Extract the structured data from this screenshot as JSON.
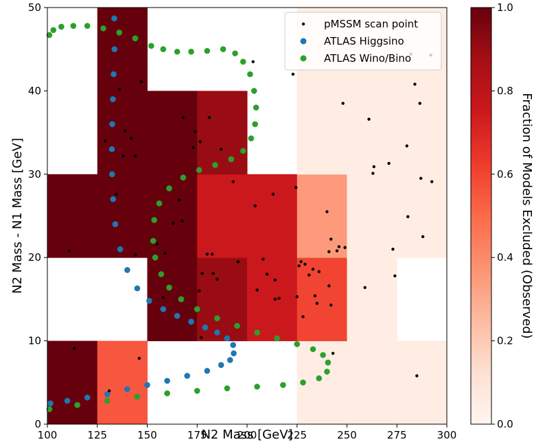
{
  "chart_data": {
    "type": "heatmap",
    "xlabel": "N2 Mass [GeV]",
    "ylabel": "N2 Mass - N1 Mass [GeV]",
    "colorbar_label": "Fraction of Models Excluded (Observed)",
    "xlim": [
      100,
      300
    ],
    "ylim": [
      0,
      50
    ],
    "xticks": [
      "100",
      "125",
      "150",
      "175",
      "200",
      "225",
      "250",
      "275",
      "300"
    ],
    "yticks": [
      "0",
      "10",
      "20",
      "30",
      "40",
      "50"
    ],
    "colorbar_ticks": [
      "0.0",
      "0.2",
      "0.4",
      "0.6",
      "0.8",
      "1.0"
    ],
    "colormap": "Reds",
    "legend_position": "top-right",
    "heatmap_cells": [
      {
        "x0": 100,
        "x1": 125,
        "y0": 0,
        "y1": 10,
        "value": 1.0
      },
      {
        "x0": 125,
        "x1": 150,
        "y0": 0,
        "y1": 10,
        "value": 0.55
      },
      {
        "x0": 225,
        "x1": 250,
        "y0": 0,
        "y1": 10,
        "value": 0.05
      },
      {
        "x0": 250,
        "x1": 275,
        "y0": 0,
        "y1": 10,
        "value": 0.05
      },
      {
        "x0": 275,
        "x1": 300,
        "y0": 0,
        "y1": 10,
        "value": 0.05
      },
      {
        "x0": 150,
        "x1": 175,
        "y0": 10,
        "y1": 20,
        "value": 1.0
      },
      {
        "x0": 175,
        "x1": 200,
        "y0": 10,
        "y1": 20,
        "value": 0.9
      },
      {
        "x0": 200,
        "x1": 225,
        "y0": 10,
        "y1": 20,
        "value": 0.75
      },
      {
        "x0": 225,
        "x1": 250,
        "y0": 10,
        "y1": 20,
        "value": 0.6
      },
      {
        "x0": 250,
        "x1": 275,
        "y0": 10,
        "y1": 20,
        "value": 0.05
      },
      {
        "x0": 100,
        "x1": 125,
        "y0": 20,
        "y1": 30,
        "value": 1.0
      },
      {
        "x0": 125,
        "x1": 150,
        "y0": 20,
        "y1": 30,
        "value": 1.0
      },
      {
        "x0": 150,
        "x1": 175,
        "y0": 20,
        "y1": 30,
        "value": 1.0
      },
      {
        "x0": 175,
        "x1": 200,
        "y0": 20,
        "y1": 30,
        "value": 0.75
      },
      {
        "x0": 200,
        "x1": 225,
        "y0": 20,
        "y1": 30,
        "value": 0.75
      },
      {
        "x0": 225,
        "x1": 250,
        "y0": 20,
        "y1": 30,
        "value": 0.35
      },
      {
        "x0": 250,
        "x1": 275,
        "y0": 20,
        "y1": 30,
        "value": 0.05
      },
      {
        "x0": 275,
        "x1": 300,
        "y0": 20,
        "y1": 30,
        "value": 0.05
      },
      {
        "x0": 125,
        "x1": 150,
        "y0": 30,
        "y1": 40,
        "value": 1.0
      },
      {
        "x0": 150,
        "x1": 175,
        "y0": 30,
        "y1": 40,
        "value": 1.0
      },
      {
        "x0": 175,
        "x1": 200,
        "y0": 30,
        "y1": 40,
        "value": 0.9
      },
      {
        "x0": 225,
        "x1": 250,
        "y0": 30,
        "y1": 40,
        "value": 0.05
      },
      {
        "x0": 250,
        "x1": 275,
        "y0": 30,
        "y1": 40,
        "value": 0.05
      },
      {
        "x0": 275,
        "x1": 300,
        "y0": 30,
        "y1": 40,
        "value": 0.05
      },
      {
        "x0": 125,
        "x1": 150,
        "y0": 40,
        "y1": 50,
        "value": 1.0
      },
      {
        "x0": 225,
        "x1": 250,
        "y0": 40,
        "y1": 50,
        "value": 0.05
      },
      {
        "x0": 250,
        "x1": 275,
        "y0": 40,
        "y1": 50,
        "value": 0.05
      },
      {
        "x0": 275,
        "x1": 300,
        "y0": 40,
        "y1": 50,
        "value": 0.05
      }
    ],
    "series": [
      {
        "name": "pMSSM scan point",
        "type": "scatter",
        "color": "#000000",
        "points": [
          [
            113.5,
            9.1
          ],
          [
            131,
            4.0
          ],
          [
            146,
            7.9
          ],
          [
            111,
            20.8
          ],
          [
            134.5,
            27.6
          ],
          [
            144,
            20.3
          ],
          [
            155,
            21.6
          ],
          [
            158,
            15.2
          ],
          [
            159,
            20.5
          ],
          [
            163,
            24.1
          ],
          [
            166,
            26.9
          ],
          [
            167.5,
            24.4
          ],
          [
            174,
            35.1
          ],
          [
            176,
            16.0
          ],
          [
            177,
            10.4
          ],
          [
            177.5,
            18.1
          ],
          [
            176.5,
            33.9
          ],
          [
            181,
            36.8
          ],
          [
            180,
            20.4
          ],
          [
            182.5,
            20.4
          ],
          [
            183,
            18.1
          ],
          [
            185,
            17.4
          ],
          [
            187,
            33.0
          ],
          [
            195.5,
            19.5
          ],
          [
            193,
            29.1
          ],
          [
            203,
            43.5
          ],
          [
            204,
            26.2
          ],
          [
            205,
            16.1
          ],
          [
            208,
            19.8
          ],
          [
            210,
            18.0
          ],
          [
            213,
            27.6
          ],
          [
            214,
            17.3
          ],
          [
            214,
            15.0
          ],
          [
            216,
            15.1
          ],
          [
            223,
            42.0
          ],
          [
            224.5,
            28.4
          ],
          [
            225,
            15.3
          ],
          [
            226,
            19.0
          ],
          [
            227,
            19.5
          ],
          [
            228,
            12.9
          ],
          [
            229,
            19.2
          ],
          [
            231,
            17.9
          ],
          [
            233,
            18.6
          ],
          [
            234,
            15.4
          ],
          [
            235,
            14.5
          ],
          [
            236,
            18.3
          ],
          [
            240,
            25.5
          ],
          [
            241,
            20.7
          ],
          [
            241,
            16.6
          ],
          [
            242,
            14.3
          ],
          [
            242,
            22.2
          ],
          [
            243,
            8.5
          ],
          [
            245,
            20.8
          ],
          [
            246,
            21.3
          ],
          [
            248,
            38.5
          ],
          [
            249,
            21.2
          ],
          [
            259,
            16.4
          ],
          [
            261,
            36.6
          ],
          [
            263,
            30.1
          ],
          [
            263.5,
            30.9
          ],
          [
            271,
            31.3
          ],
          [
            273,
            21.0
          ],
          [
            274,
            17.8
          ],
          [
            280,
            33.4
          ],
          [
            280.5,
            24.9
          ],
          [
            282,
            44.4
          ],
          [
            284,
            40.8
          ],
          [
            285,
            5.8
          ],
          [
            286.5,
            38.5
          ],
          [
            287,
            29.5
          ],
          [
            288,
            22.5
          ],
          [
            292,
            44.3
          ],
          [
            292.5,
            29.1
          ],
          [
            129,
            34.0
          ],
          [
            136,
            40.2
          ],
          [
            138,
            32.2
          ],
          [
            139,
            35.2
          ],
          [
            142,
            34.3
          ],
          [
            144,
            32.2
          ],
          [
            147,
            41.1
          ],
          [
            168,
            36.8
          ],
          [
            173,
            33.2
          ]
        ]
      },
      {
        "name": "ATLAS Higgsino",
        "type": "scatter",
        "color": "#1f77b4",
        "points": [
          [
            133.5,
            48.7
          ],
          [
            133.6,
            45
          ],
          [
            133.2,
            42
          ],
          [
            132.8,
            39
          ],
          [
            132.5,
            36
          ],
          [
            132.3,
            33
          ],
          [
            132.4,
            30
          ],
          [
            132.9,
            27
          ],
          [
            134,
            24
          ],
          [
            136.5,
            21
          ],
          [
            140,
            18.5
          ],
          [
            145,
            16.3
          ],
          [
            151,
            14.8
          ],
          [
            158,
            13.8
          ],
          [
            165,
            13.0
          ],
          [
            172,
            12.3
          ],
          [
            179,
            11.6
          ],
          [
            185,
            11
          ],
          [
            190,
            10.3
          ],
          [
            193,
            9.5
          ],
          [
            193.3,
            8.5
          ],
          [
            191.5,
            7.7
          ],
          [
            187,
            7.1
          ],
          [
            180,
            6.4
          ],
          [
            170,
            5.8
          ],
          [
            160,
            5.2
          ],
          [
            150,
            4.7
          ],
          [
            140,
            4.2
          ],
          [
            130,
            3.6
          ],
          [
            120,
            3.2
          ],
          [
            110,
            2.8
          ],
          [
            101.5,
            2.5
          ]
        ]
      },
      {
        "name": "ATLAS Wino/Bino",
        "type": "scatter",
        "color": "#2ca02c",
        "points": [
          [
            101,
            46.7
          ],
          [
            103,
            47.3
          ],
          [
            107,
            47.7
          ],
          [
            113,
            47.8
          ],
          [
            120,
            47.8
          ],
          [
            128,
            47.5
          ],
          [
            136,
            47.0
          ],
          [
            144,
            46.3
          ],
          [
            152,
            45.4
          ],
          [
            158,
            45.0
          ],
          [
            165,
            44.7
          ],
          [
            172,
            44.7
          ],
          [
            180,
            44.8
          ],
          [
            188,
            45.0
          ],
          [
            194,
            44.5
          ],
          [
            198,
            43.5
          ],
          [
            201.5,
            42
          ],
          [
            203.5,
            40
          ],
          [
            204.5,
            38
          ],
          [
            204,
            36
          ],
          [
            202,
            34.3
          ],
          [
            198,
            32.8
          ],
          [
            192,
            31.8
          ],
          [
            184,
            31.1
          ],
          [
            176,
            30.5
          ],
          [
            168,
            29.6
          ],
          [
            161,
            28.3
          ],
          [
            156,
            26.5
          ],
          [
            153.5,
            24.5
          ],
          [
            153,
            22
          ],
          [
            154,
            20
          ],
          [
            157,
            18
          ],
          [
            161,
            16.4
          ],
          [
            167,
            15
          ],
          [
            175,
            13.8
          ],
          [
            185,
            12.7
          ],
          [
            195,
            11.8
          ],
          [
            205,
            11
          ],
          [
            215,
            10.3
          ],
          [
            225,
            9.6
          ],
          [
            233,
            9.0
          ],
          [
            238,
            8.3
          ],
          [
            240.5,
            7.4
          ],
          [
            240,
            6.3
          ],
          [
            236,
            5.5
          ],
          [
            228,
            5.0
          ],
          [
            218,
            4.7
          ],
          [
            205,
            4.5
          ],
          [
            190,
            4.3
          ],
          [
            175,
            4.0
          ],
          [
            160,
            3.7
          ],
          [
            145,
            3.3
          ],
          [
            130,
            2.8
          ],
          [
            115,
            2.3
          ],
          [
            101,
            1.8
          ]
        ]
      }
    ]
  }
}
